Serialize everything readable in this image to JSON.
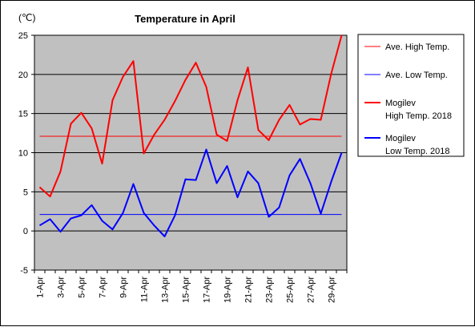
{
  "chart_data": {
    "type": "line",
    "title": "Temperature in April",
    "unit_label": "(℃)",
    "ylim": [
      -5,
      25
    ],
    "yticks": [
      -5,
      0,
      5,
      10,
      15,
      20,
      25
    ],
    "grid": true,
    "legend_position": "right",
    "x_labels": [
      "1-Apr",
      "2-Apr",
      "3-Apr",
      "4-Apr",
      "5-Apr",
      "6-Apr",
      "7-Apr",
      "8-Apr",
      "9-Apr",
      "10-Apr",
      "11-Apr",
      "12-Apr",
      "13-Apr",
      "14-Apr",
      "15-Apr",
      "16-Apr",
      "17-Apr",
      "18-Apr",
      "19-Apr",
      "20-Apr",
      "21-Apr",
      "22-Apr",
      "23-Apr",
      "24-Apr",
      "25-Apr",
      "26-Apr",
      "27-Apr",
      "28-Apr",
      "29-Apr",
      "30-Apr"
    ],
    "x_tick_labels": [
      "1-Apr",
      "3-Apr",
      "5-Apr",
      "7-Apr",
      "9-Apr",
      "11-Apr",
      "13-Apr",
      "15-Apr",
      "17-Apr",
      "19-Apr",
      "21-Apr",
      "23-Apr",
      "25-Apr",
      "27-Apr",
      "29-Apr"
    ],
    "colors": {
      "plot_background": "#c0c0c0",
      "high": "#ff0000",
      "low": "#0000ff"
    },
    "series": [
      {
        "name": "Ave. High Temp.",
        "kind": "average",
        "color": "#ff0000",
        "value": 12.1
      },
      {
        "name": "Ave. Low Temp.",
        "kind": "average",
        "color": "#0000ff",
        "value": 2.1
      },
      {
        "name": "Mogilev\nHigh Temp. 2018",
        "kind": "daily",
        "color": "#ff0000",
        "values": [
          5.6,
          4.4,
          7.6,
          13.7,
          15.1,
          13.1,
          8.6,
          16.7,
          19.7,
          21.7,
          9.9,
          12.3,
          14.2,
          16.6,
          19.3,
          21.5,
          18.4,
          12.3,
          11.5,
          16.7,
          20.9,
          12.9,
          11.6,
          14.2,
          16.1,
          13.6,
          14.3,
          14.2,
          20.1,
          25.0
        ]
      },
      {
        "name": "Mogilev\nLow Temp. 2018",
        "kind": "daily",
        "color": "#0000ff",
        "values": [
          0.7,
          1.5,
          -0.1,
          1.6,
          2.0,
          3.3,
          1.3,
          0.2,
          2.3,
          6.0,
          2.3,
          0.7,
          -0.7,
          2.0,
          6.6,
          6.5,
          10.4,
          6.1,
          8.3,
          4.3,
          7.6,
          6.1,
          1.8,
          3.0,
          7.1,
          9.2,
          6.1,
          2.2,
          6.3,
          10.0
        ]
      }
    ]
  }
}
